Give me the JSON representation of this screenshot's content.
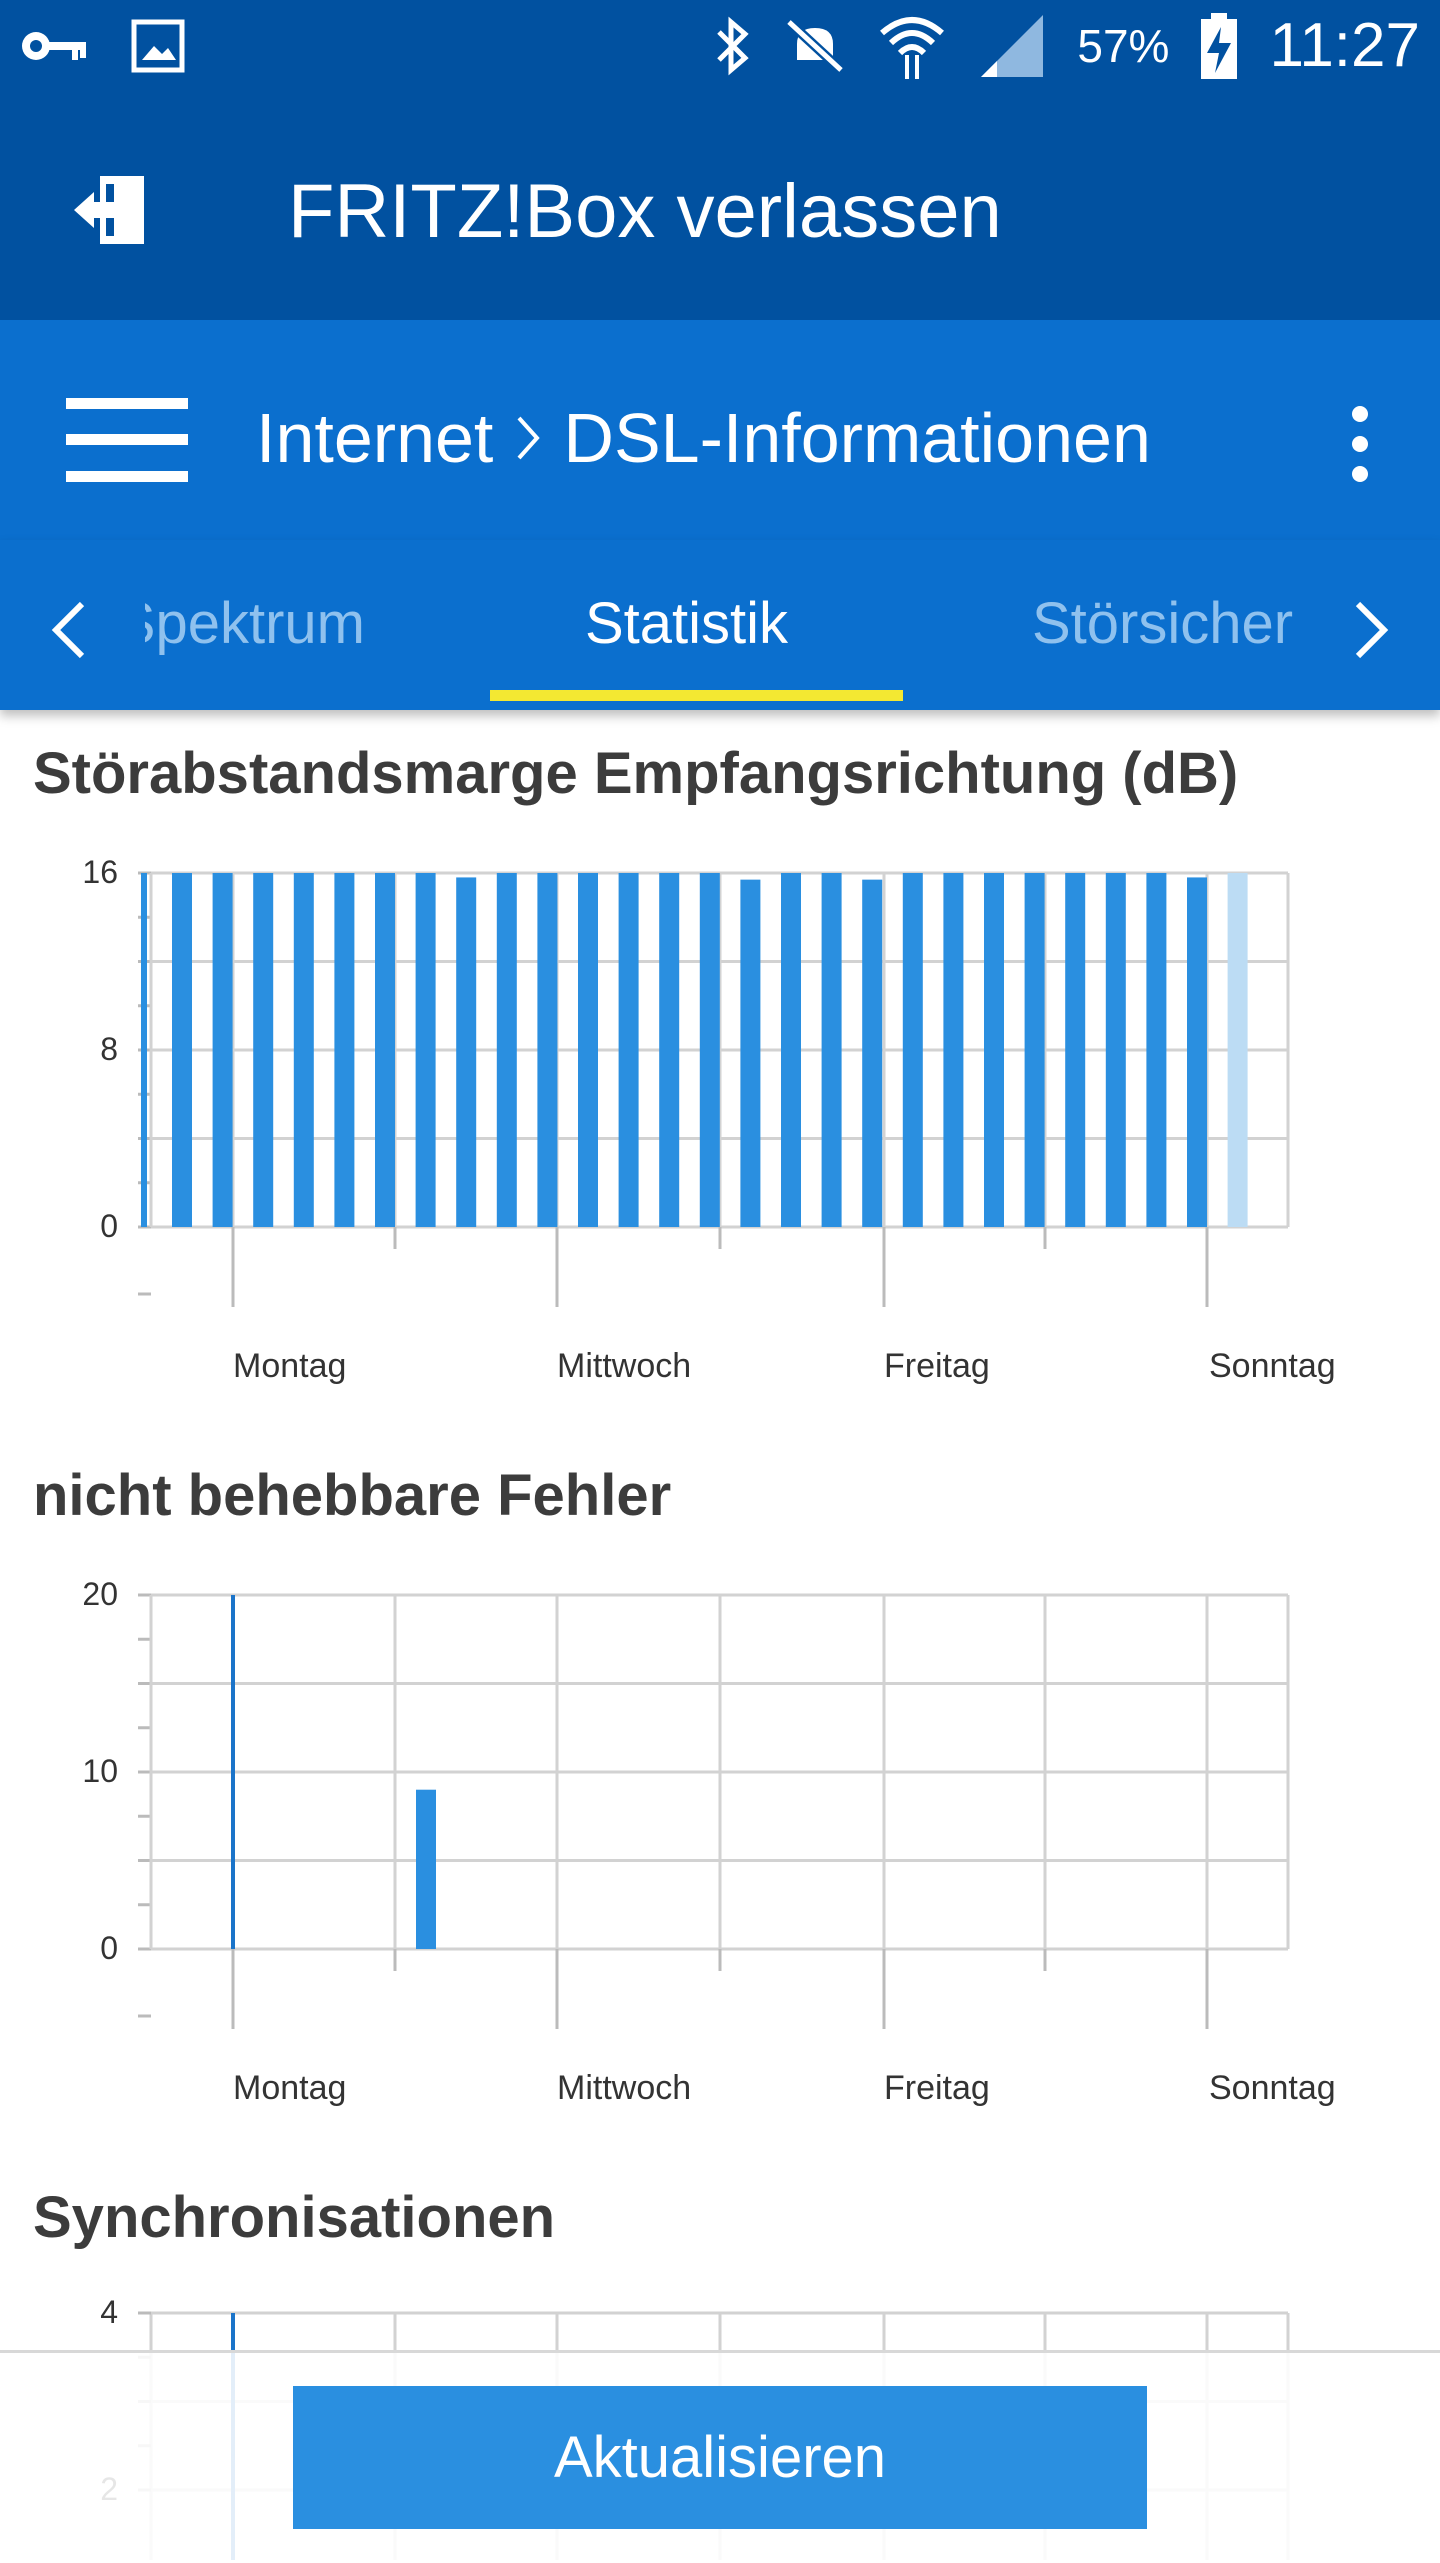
{
  "status_bar": {
    "battery_percent": "57%",
    "time": "11:27",
    "icons": [
      "key-icon",
      "image-icon",
      "bluetooth-icon",
      "mute-icon",
      "wifi-icon",
      "signal-icon",
      "battery-charging-icon"
    ]
  },
  "top_bar": {
    "title": "FRITZ!Box verlassen",
    "icon": "exit-icon"
  },
  "nav_bar": {
    "crumb_section": "Internet",
    "crumb_page": "DSL-Informationen",
    "menu_icon": "hamburger-icon",
    "more_icon": "more-vert-icon"
  },
  "tabs": {
    "prev": "Spektrum",
    "active": "Statistik",
    "next": "Störsicherheit"
  },
  "colors": {
    "header": "#0151a0",
    "nav": "#0b6fce",
    "bar": "#2a8fe0",
    "bar_light": "#bcdcf4",
    "underline": "#f3e832"
  },
  "chart_data": [
    {
      "type": "bar",
      "title": "Störabstandsmarge Empfangsrichtung (dB)",
      "ylim": [
        0,
        16
      ],
      "y_ticks": [
        0,
        8,
        16
      ],
      "x_labels": [
        "Montag",
        "Mittwoch",
        "Freitag",
        "Sonntag"
      ],
      "values": [
        16,
        16,
        16,
        16,
        16,
        16,
        16,
        15.8,
        16,
        16,
        16,
        16,
        16,
        16,
        15.7,
        16,
        16,
        15.7,
        16,
        16,
        16,
        16,
        16,
        16,
        16,
        15.8
      ],
      "pending_values": [
        16
      ],
      "grid": true
    },
    {
      "type": "bar",
      "title": "nicht behebbare Fehler",
      "ylim": [
        0,
        20
      ],
      "y_ticks": [
        0,
        10,
        20
      ],
      "x_labels": [
        "Montag",
        "Mittwoch",
        "Freitag",
        "Sonntag"
      ],
      "spikes": [
        20
      ],
      "values": [
        9
      ],
      "grid": true
    },
    {
      "type": "bar",
      "title": "Synchronisationen",
      "ylim": [
        0,
        4
      ],
      "y_ticks": [
        2,
        4
      ],
      "grid": true
    }
  ],
  "footer": {
    "button_label": "Aktualisieren"
  }
}
